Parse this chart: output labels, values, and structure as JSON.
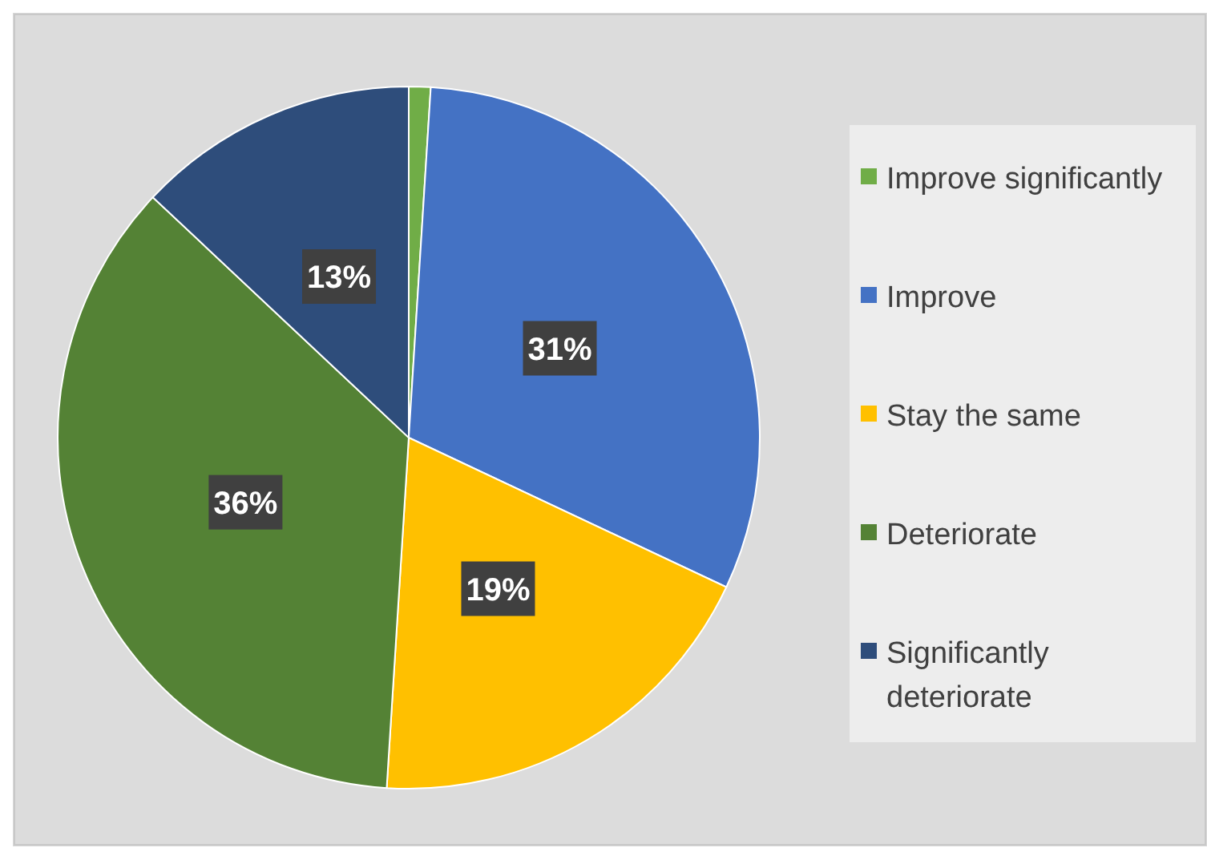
{
  "chart_data": {
    "type": "pie",
    "categories": [
      "Improve significantly",
      "Improve",
      "Stay the same",
      "Deteriorate",
      "Significantly deteriorate"
    ],
    "values": [
      1,
      31,
      19,
      36,
      13
    ],
    "colors": [
      "#70ad47",
      "#4472c4",
      "#ffc000",
      "#548235",
      "#2e4d7b"
    ],
    "value_labels": [
      null,
      "31%",
      "19%",
      "36%",
      "13%"
    ],
    "legend": "right"
  }
}
